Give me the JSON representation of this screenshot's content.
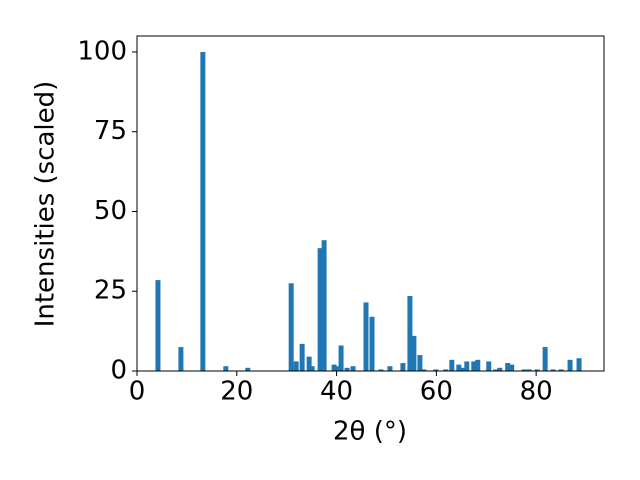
{
  "chart_data": {
    "type": "bar",
    "xlabel": "2θ (°)",
    "ylabel": "Intensities (scaled)",
    "x": [
      4.2,
      8.8,
      13.2,
      17.8,
      22.2,
      30.9,
      31.9,
      33.1,
      34.5,
      35.1,
      36.7,
      37.5,
      39.5,
      39.9,
      40.9,
      42.1,
      43.3,
      45.9,
      47.1,
      48.9,
      50.7,
      53.3,
      54.7,
      55.5,
      56.7,
      57.5,
      59.9,
      61.9,
      63.1,
      64.5,
      65.3,
      66.1,
      67.5,
      68.3,
      70.5,
      71.9,
      72.7,
      74.3,
      75.1,
      77.6,
      78.6,
      80.2,
      81.8,
      83.4,
      85.0,
      86.8,
      88.6
    ],
    "values": [
      28.5,
      7.5,
      100,
      1.5,
      1,
      27.5,
      3,
      8.5,
      4.5,
      1.5,
      38.5,
      41,
      2,
      1.5,
      8,
      1,
      1.5,
      21.5,
      17,
      0.5,
      1.5,
      2.5,
      23.5,
      11,
      5,
      0.5,
      0.5,
      0.5,
      3.5,
      2,
      1,
      3,
      3,
      3.5,
      3,
      0.5,
      1,
      2.5,
      2,
      0.5,
      0.5,
      0.5,
      7.5,
      0.5,
      0.5,
      3.5,
      4
    ],
    "color": "#1f77b4",
    "xlim": [
      0,
      93.6
    ],
    "xticks": [
      0,
      20,
      40,
      60,
      80
    ],
    "ylim": [
      0,
      105
    ],
    "yticks": [
      0,
      25,
      50,
      75,
      100
    ]
  }
}
